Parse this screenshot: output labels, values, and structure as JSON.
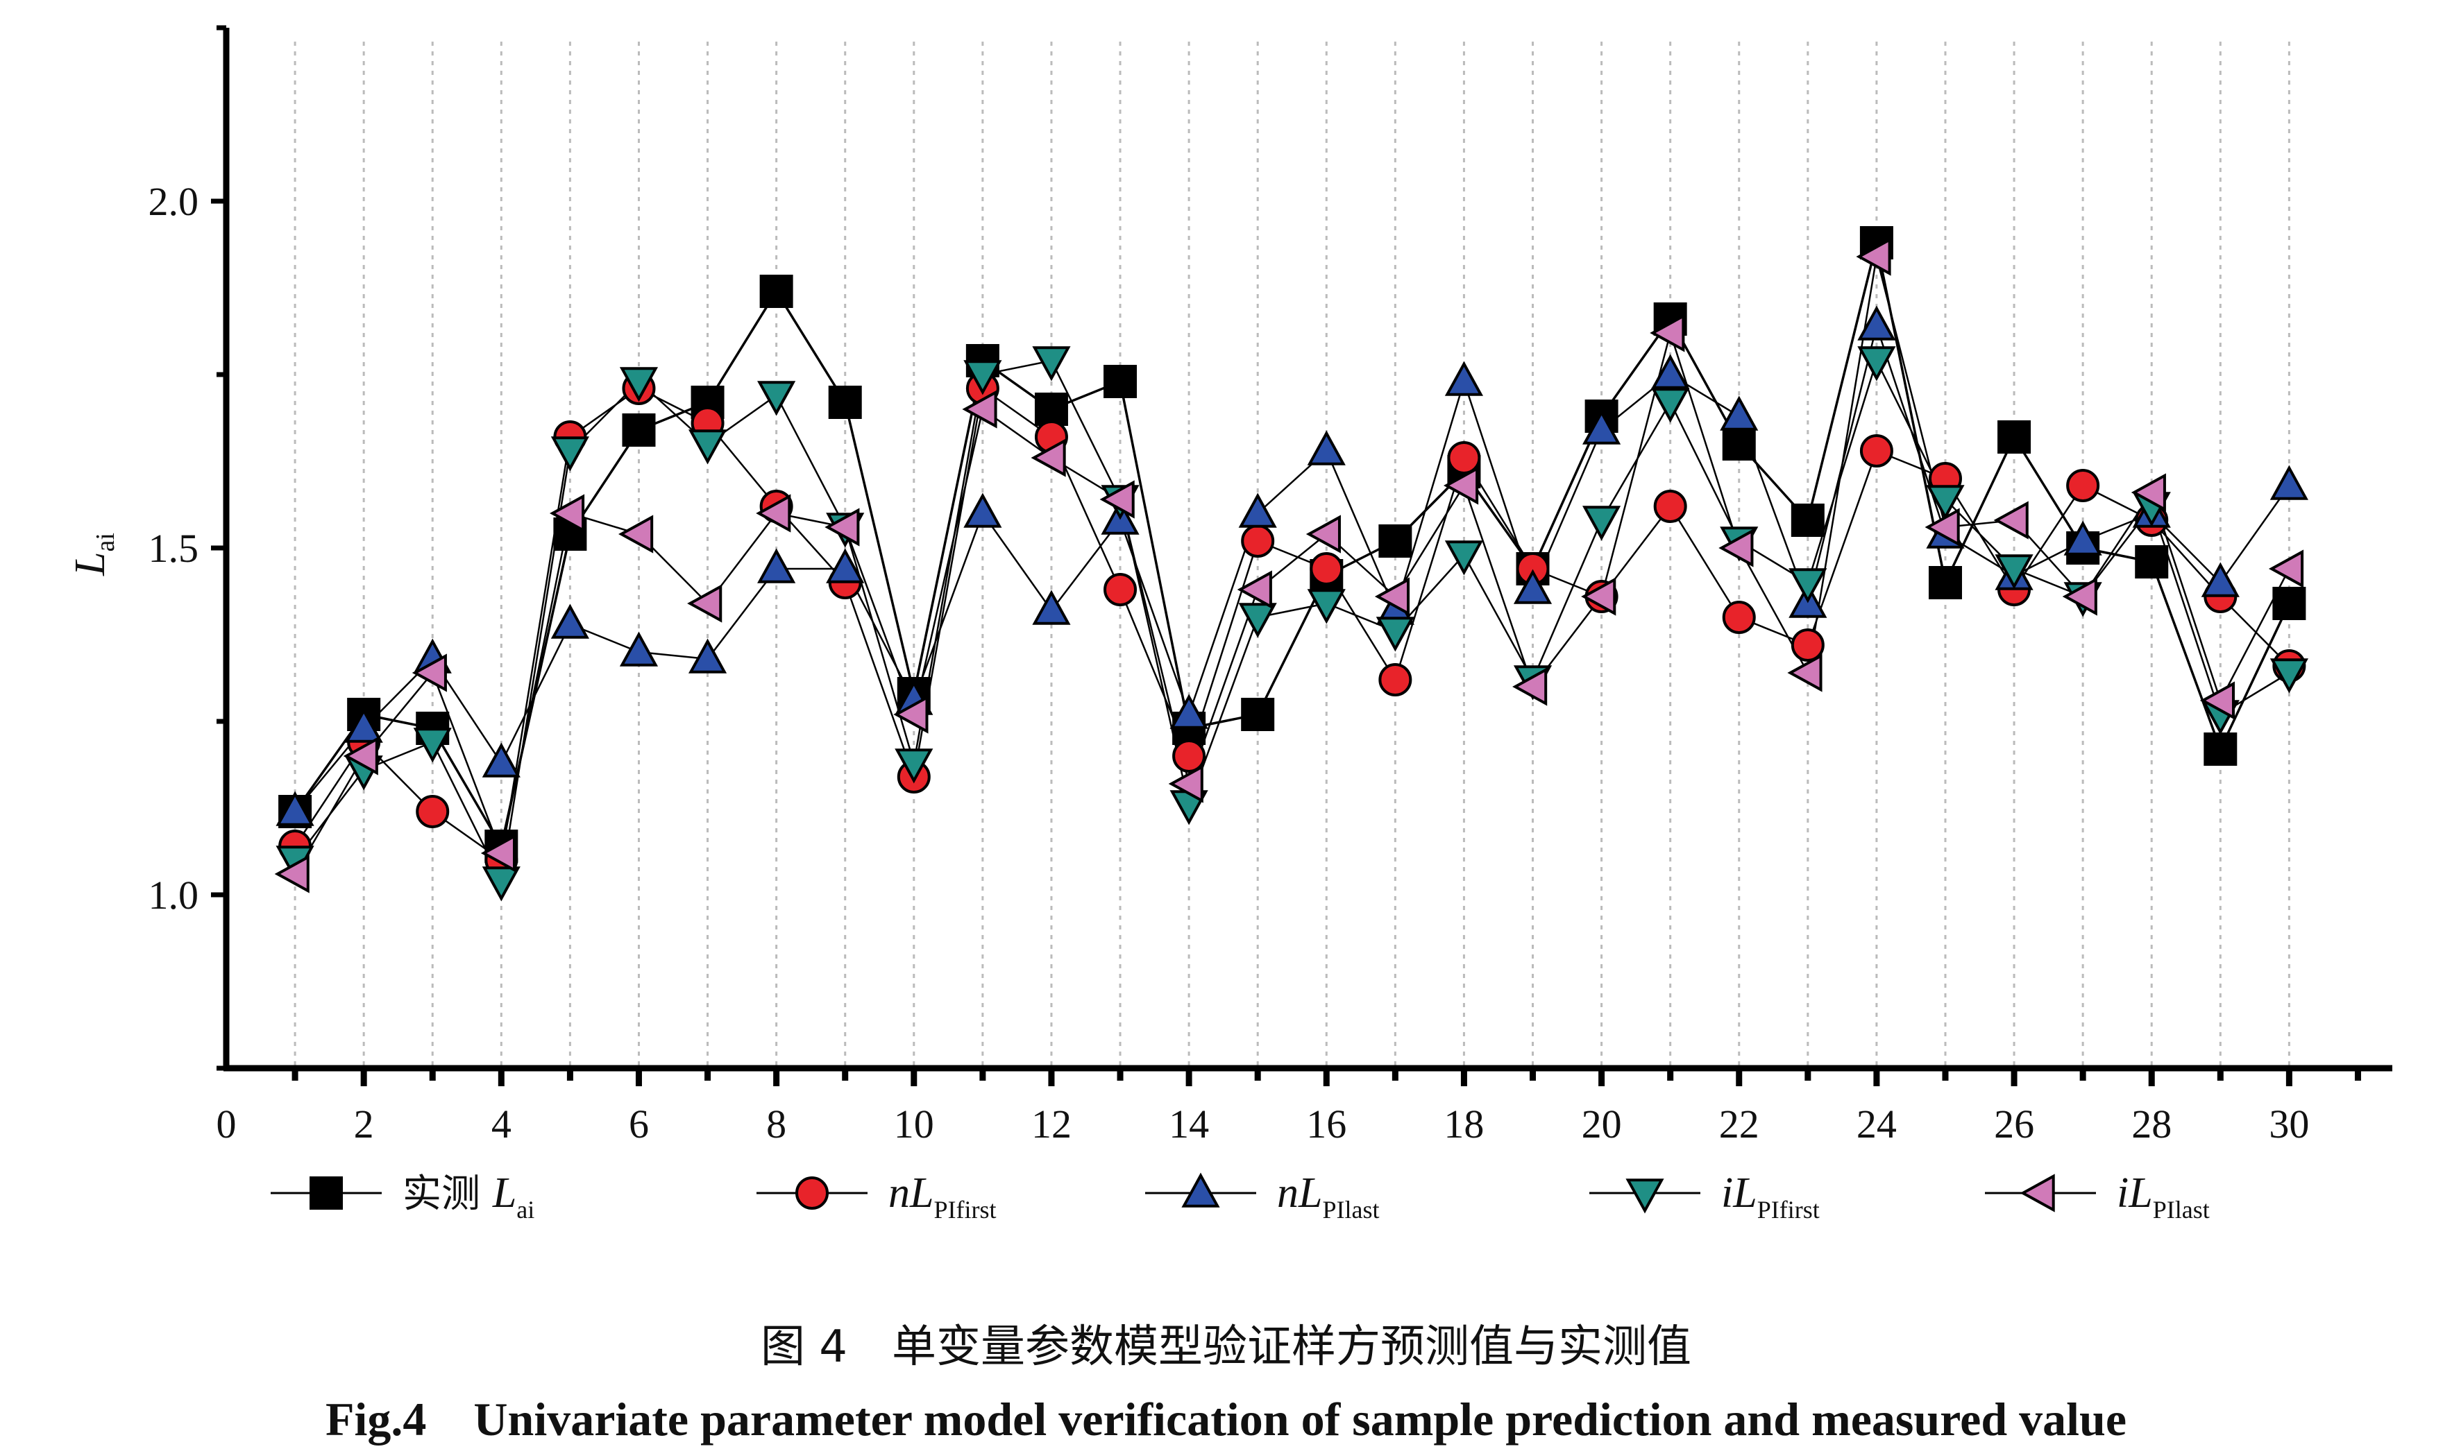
{
  "chart_data": {
    "type": "line",
    "x": [
      1,
      2,
      3,
      4,
      5,
      6,
      7,
      8,
      9,
      10,
      11,
      12,
      13,
      14,
      15,
      16,
      17,
      18,
      19,
      20,
      21,
      22,
      23,
      24,
      25,
      26,
      27,
      28,
      29,
      30
    ],
    "xlim": [
      0,
      31.5
    ],
    "ylim": [
      0.75,
      2.25
    ],
    "x_ticks": [
      "0",
      "2",
      "4",
      "6",
      "8",
      "10",
      "12",
      "14",
      "16",
      "18",
      "20",
      "22",
      "24",
      "26",
      "28",
      "30"
    ],
    "y_ticks": [
      "1.0",
      "1.5",
      "2.0"
    ],
    "ylabel": "L",
    "ylabel_sub": "ai",
    "grid": "vertical dotted",
    "legend_placement": "bottom",
    "series": [
      {
        "legend_prefix": "实测 ",
        "legend_main": "L",
        "legend_sub": "ai",
        "marker": "square",
        "color": "#000000",
        "values": [
          1.12,
          1.26,
          1.24,
          1.07,
          1.52,
          1.67,
          1.71,
          1.87,
          1.71,
          1.29,
          1.77,
          1.7,
          1.74,
          1.24,
          1.26,
          1.46,
          1.51,
          1.61,
          1.47,
          1.69,
          1.83,
          1.65,
          1.54,
          1.94,
          1.45,
          1.66,
          1.5,
          1.48,
          1.21,
          1.42
        ]
      },
      {
        "legend_prefix": "",
        "legend_main": "nL",
        "legend_sub": "PIfirst",
        "marker": "circle",
        "color": "#e8232a",
        "values": [
          1.07,
          1.22,
          1.12,
          1.05,
          1.66,
          1.73,
          1.68,
          1.56,
          1.45,
          1.17,
          1.73,
          1.66,
          1.44,
          1.2,
          1.51,
          1.47,
          1.31,
          1.63,
          1.47,
          1.43,
          1.56,
          1.4,
          1.36,
          1.64,
          1.6,
          1.44,
          1.59,
          1.54,
          1.43,
          1.33
        ]
      },
      {
        "legend_prefix": "",
        "legend_main": "nL",
        "legend_sub": "PIlast",
        "marker": "triangle-up",
        "color": "#2a4fa8",
        "values": [
          1.12,
          1.24,
          1.34,
          1.19,
          1.39,
          1.35,
          1.34,
          1.47,
          1.47,
          1.28,
          1.55,
          1.41,
          1.54,
          1.26,
          1.55,
          1.64,
          1.41,
          1.74,
          1.44,
          1.67,
          1.75,
          1.69,
          1.42,
          1.82,
          1.52,
          1.46,
          1.51,
          1.55,
          1.45,
          1.59
        ]
      },
      {
        "legend_prefix": "",
        "legend_main": "iL",
        "legend_sub": "PIfirst",
        "marker": "triangle-down",
        "color": "#1f8f85",
        "values": [
          1.05,
          1.18,
          1.22,
          1.02,
          1.64,
          1.74,
          1.65,
          1.72,
          1.53,
          1.19,
          1.75,
          1.77,
          1.57,
          1.13,
          1.4,
          1.42,
          1.38,
          1.49,
          1.31,
          1.54,
          1.71,
          1.51,
          1.45,
          1.77,
          1.57,
          1.47,
          1.43,
          1.56,
          1.26,
          1.32
        ]
      },
      {
        "legend_prefix": "",
        "legend_main": "iL",
        "legend_sub": "PIlast",
        "marker": "triangle-left",
        "color": "#d07ab8",
        "values": [
          1.03,
          1.2,
          1.32,
          1.06,
          1.55,
          1.52,
          1.42,
          1.55,
          1.53,
          1.26,
          1.7,
          1.63,
          1.57,
          1.16,
          1.44,
          1.52,
          1.43,
          1.59,
          1.3,
          1.43,
          1.81,
          1.5,
          1.32,
          1.92,
          1.53,
          1.54,
          1.43,
          1.58,
          1.28,
          1.47
        ]
      }
    ]
  },
  "caption": {
    "cn": "图 4　单变量参数模型验证样方预测值与实测值",
    "en": "Fig.4　Univariate parameter model verification of sample prediction and measured value"
  }
}
